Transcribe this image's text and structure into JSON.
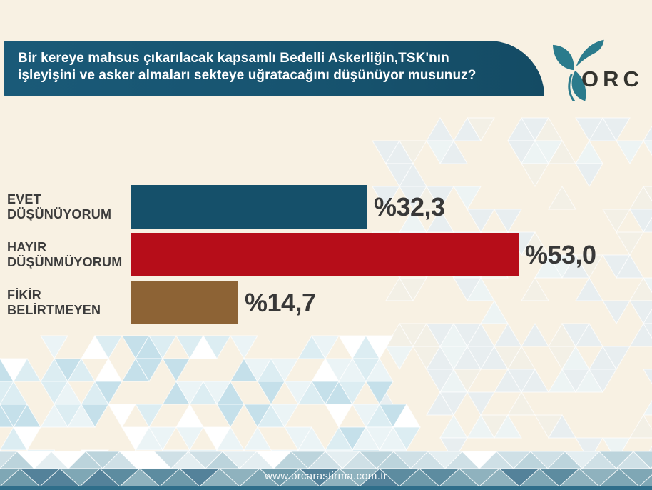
{
  "header": {
    "question_lines": [
      "Bir kereye mahsus çıkarılacak kapsamlı Bedelli Askerliğin,TSK'nın",
      "işleyişini ve asker almaları sekteye uğratacağını düşünüyor musunuz?"
    ]
  },
  "logo": {
    "text": "ORC",
    "icon": "trillium-flower-icon",
    "icon_color": "#2b7b8c",
    "text_color": "#34342f"
  },
  "footer": {
    "url": "www.orcarastirma.com.tr"
  },
  "colors": {
    "page_background": "#f8f1e3",
    "question_box": "#175470",
    "footer_band": "#6d99a9",
    "footer_strip": "#2f6e8a",
    "label_text": "#3c3c3c",
    "value_text": "#383838"
  },
  "chart_data": {
    "type": "bar",
    "orientation": "horizontal",
    "title": "Bir kereye mahsus çıkarılacak kapsamlı Bedelli Askerliğin,TSK'nın işleyişini ve asker almaları sekteye uğratacağını düşünüyor musunuz?",
    "categories": [
      "EVET DÜŞÜNÜYORUM",
      "HAYIR DÜŞÜNMÜYORUM",
      "FİKİR BELİRTMEYEN"
    ],
    "values": [
      32.3,
      53.0,
      14.7
    ],
    "unit": "percent",
    "xlim": [
      0,
      60
    ],
    "grid": false,
    "legend": "none",
    "rows": [
      {
        "label_line1": "EVET",
        "label_line2": "DÜŞÜNÜYORUM",
        "value": 32.3,
        "value_label": "%32,3",
        "color": "#15506a"
      },
      {
        "label_line1": "HAYIR",
        "label_line2": "DÜŞÜNMÜYORUM",
        "value": 53.0,
        "value_label": "%53,0",
        "color": "#b60d19"
      },
      {
        "label_line1": "FİKİR",
        "label_line2": "BELİRTMEYEN",
        "value": 14.7,
        "value_label": "%14,7",
        "color": "#8d6335"
      }
    ]
  }
}
